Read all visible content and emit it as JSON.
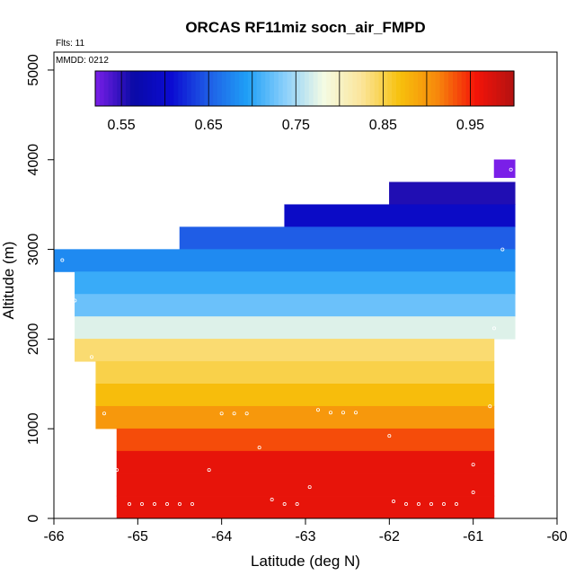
{
  "chart_data": {
    "type": "heatmap",
    "title": "ORCAS RF11miz socn_air_FMPD",
    "xlabel": "Latitude (deg N)",
    "ylabel": "Altitude (m)",
    "flights_note": "Flts: 11",
    "mmdd_note": "MMDD: 0212",
    "xlim": [
      -66,
      -60
    ],
    "ylim": [
      0,
      5200
    ],
    "x_ticks": [
      -66,
      -65,
      -64,
      -63,
      -62,
      -61,
      -60
    ],
    "x_tick_labels": [
      "-66",
      "-65",
      "-64",
      "-63",
      "-62",
      "-61",
      "-60"
    ],
    "y_ticks": [
      0,
      1000,
      2000,
      3000,
      4000,
      5000
    ],
    "y_tick_labels": [
      "0",
      "1000",
      "2000",
      "3000",
      "4000",
      "5000"
    ],
    "colorbar": {
      "range": [
        0.52,
        1.0
      ],
      "tick_values": [
        0.55,
        0.65,
        0.75,
        0.85,
        0.95
      ],
      "tick_labels": [
        "0.55",
        "0.65",
        "0.75",
        "0.85",
        "0.95"
      ],
      "colors": [
        "#7a1fe8",
        "#0a0aa6",
        "#0b0bd2",
        "#1f5fe6",
        "#1fa0f7",
        "#8cd0fb",
        "#f4fbe4",
        "#fbe59a",
        "#f7c10c",
        "#f7870c",
        "#f41408",
        "#b31212"
      ]
    },
    "bins": [
      {
        "y0": 3800,
        "y1": 4000,
        "x0": -60.75,
        "x1": -60.5,
        "value": 0.52
      },
      {
        "y0": 3500,
        "y1": 3750,
        "x0": -62.0,
        "x1": -60.5,
        "value": 0.555
      },
      {
        "y0": 3250,
        "y1": 3500,
        "x0": -63.25,
        "x1": -60.5,
        "value": 0.595
      },
      {
        "y0": 3000,
        "y1": 3250,
        "x0": -64.5,
        "x1": -60.5,
        "value": 0.65
      },
      {
        "y0": 2750,
        "y1": 3000,
        "x0": -66.0,
        "x1": -60.5,
        "value": 0.68
      },
      {
        "y0": 2500,
        "y1": 2750,
        "x0": -65.75,
        "x1": -60.5,
        "value": 0.705
      },
      {
        "y0": 2250,
        "y1": 2500,
        "x0": -65.75,
        "x1": -60.5,
        "value": 0.725
      },
      {
        "y0": 2000,
        "y1": 2250,
        "x0": -65.75,
        "x1": -60.5,
        "value": 0.772
      },
      {
        "y0": 1750,
        "y1": 2000,
        "x0": -65.75,
        "x1": -60.75,
        "value": 0.838
      },
      {
        "y0": 1500,
        "y1": 1750,
        "x0": -65.5,
        "x1": -60.75,
        "value": 0.85
      },
      {
        "y0": 1250,
        "y1": 1500,
        "x0": -65.5,
        "x1": -60.75,
        "value": 0.872
      },
      {
        "y0": 1000,
        "y1": 1250,
        "x0": -65.5,
        "x1": -60.75,
        "value": 0.9
      },
      {
        "y0": 750,
        "y1": 1000,
        "x0": -65.25,
        "x1": -60.75,
        "value": 0.935
      },
      {
        "y0": 500,
        "y1": 750,
        "x0": -65.25,
        "x1": -60.75,
        "value": 0.965
      },
      {
        "y0": 250,
        "y1": 500,
        "x0": -65.25,
        "x1": -60.75,
        "value": 0.965
      },
      {
        "y0": 0,
        "y1": 250,
        "x0": -65.25,
        "x1": -60.75,
        "value": 0.965
      }
    ],
    "points": [
      {
        "x": -60.55,
        "y": 3890
      },
      {
        "x": -60.65,
        "y": 3000
      },
      {
        "x": -65.9,
        "y": 2880
      },
      {
        "x": -65.75,
        "y": 2430
      },
      {
        "x": -60.75,
        "y": 2120
      },
      {
        "x": -65.55,
        "y": 1800
      },
      {
        "x": -65.4,
        "y": 1170
      },
      {
        "x": -64.0,
        "y": 1170
      },
      {
        "x": -63.85,
        "y": 1170
      },
      {
        "x": -63.7,
        "y": 1170
      },
      {
        "x": -62.85,
        "y": 1210
      },
      {
        "x": -62.7,
        "y": 1180
      },
      {
        "x": -62.55,
        "y": 1180
      },
      {
        "x": -62.4,
        "y": 1180
      },
      {
        "x": -60.8,
        "y": 1250
      },
      {
        "x": -62.0,
        "y": 920
      },
      {
        "x": -63.55,
        "y": 790
      },
      {
        "x": -65.25,
        "y": 540
      },
      {
        "x": -64.15,
        "y": 540
      },
      {
        "x": -61.0,
        "y": 600
      },
      {
        "x": -62.95,
        "y": 350
      },
      {
        "x": -61.0,
        "y": 290
      },
      {
        "x": -63.4,
        "y": 210
      },
      {
        "x": -61.95,
        "y": 190
      },
      {
        "x": -65.1,
        "y": 160
      },
      {
        "x": -64.95,
        "y": 160
      },
      {
        "x": -64.8,
        "y": 160
      },
      {
        "x": -64.65,
        "y": 160
      },
      {
        "x": -64.5,
        "y": 160
      },
      {
        "x": -64.35,
        "y": 160
      },
      {
        "x": -63.25,
        "y": 160
      },
      {
        "x": -63.1,
        "y": 160
      },
      {
        "x": -61.8,
        "y": 160
      },
      {
        "x": -61.65,
        "y": 160
      },
      {
        "x": -61.5,
        "y": 160
      },
      {
        "x": -61.35,
        "y": 160
      },
      {
        "x": -61.2,
        "y": 160
      }
    ]
  }
}
